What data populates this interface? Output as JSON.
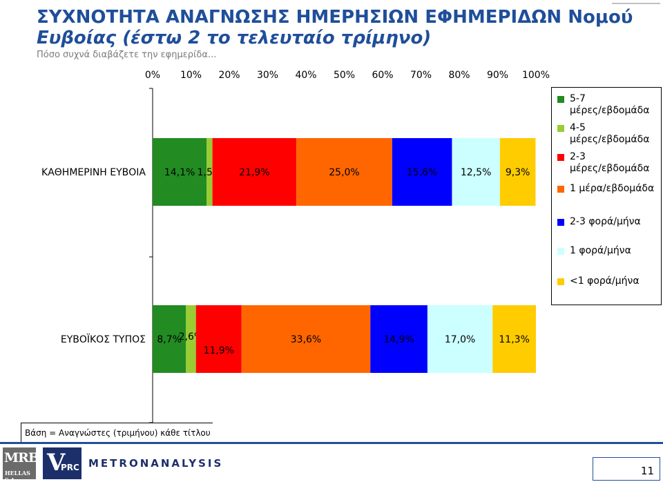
{
  "header": {
    "title_line1": "ΣΥΧΝΟΤΗΤΑ ΑΝΑΓΝΩΣΗΣ ΗΜΕΡΗΣΙΩΝ ΕΦΗΜΕΡΙΔΩΝ Νομού",
    "title_line2": "Ευβοίας (έστω 2 το τελευταίο τρίμηνο)",
    "subtitle": "Πόσο συχνά διαβάζετε την εφημερίδα..."
  },
  "chart_data": {
    "type": "bar",
    "orientation": "horizontal",
    "stacked": "100%",
    "x_ticks": [
      "0%",
      "10%",
      "20%",
      "30%",
      "40%",
      "50%",
      "60%",
      "70%",
      "80%",
      "90%",
      "100%"
    ],
    "xlim": [
      0,
      100
    ],
    "categories": [
      "ΚΑΘΗΜΕΡΙΝΗ ΕΥΒΟΙΑ",
      "ΕΥΒΟΪΚΟΣ ΤΥΠΟΣ"
    ],
    "series": [
      {
        "name": "5-7 μέρες/εβδομάδα",
        "color": "#228b22",
        "values": [
          14.1,
          8.7
        ],
        "labels": [
          "14,1%",
          "8,7%"
        ]
      },
      {
        "name": "4-5 μέρες/εβδομάδα",
        "color": "#99cc33",
        "values": [
          1.5,
          2.6
        ],
        "labels": [
          "1,5%",
          "2,6%"
        ]
      },
      {
        "name": "2-3 μέρες/εβδομάδα",
        "color": "#ff0000",
        "values": [
          21.9,
          11.9
        ],
        "labels": [
          "21,9%",
          "11,9%"
        ]
      },
      {
        "name": "1 μέρα/εβδομάδα",
        "color": "#ff6600",
        "values": [
          25.0,
          33.6
        ],
        "labels": [
          "25,0%",
          "33,6%"
        ]
      },
      {
        "name": "2-3 φορά/μήνα",
        "color": "#0000ff",
        "values": [
          15.6,
          14.9
        ],
        "labels": [
          "15,6%",
          "14,9%"
        ]
      },
      {
        "name": "1 φορά/μήνα",
        "color": "#ccffff",
        "values": [
          12.5,
          17.0
        ],
        "labels": [
          "12,5%",
          "17,0%"
        ]
      },
      {
        "name": "<1 φορά/μήνα",
        "color": "#ffcc00",
        "values": [
          9.3,
          11.3
        ],
        "labels": [
          "9,3%",
          "11,3%"
        ]
      }
    ],
    "legend_position": "right"
  },
  "legend": {
    "items": [
      {
        "line1": "5-7",
        "line2": "μέρες/εβδομάδα"
      },
      {
        "line1": "4-5",
        "line2": "μέρες/εβδομάδα"
      },
      {
        "line1": "2-3",
        "line2": "μέρες/εβδομάδα"
      },
      {
        "line1": "1 μέρα/εβδομάδα",
        "line2": ""
      },
      {
        "line1": "2-3 φορά/μήνα",
        "line2": ""
      },
      {
        "line1": "1 φορά/μήνα",
        "line2": ""
      },
      {
        "line1": "<1 φορά/μήνα",
        "line2": ""
      }
    ]
  },
  "footer": {
    "base_note": "Βάση = Αναγνώστες (τριμήνου) κάθε τίτλου",
    "logo_mrb": "MRB",
    "logo_mrb_sub": "HELLAS S.A.",
    "logo_vprc_v": "V",
    "logo_vprc_text": "PRC",
    "logo_metron": "METRONANALYSIS",
    "page_number": "11"
  }
}
